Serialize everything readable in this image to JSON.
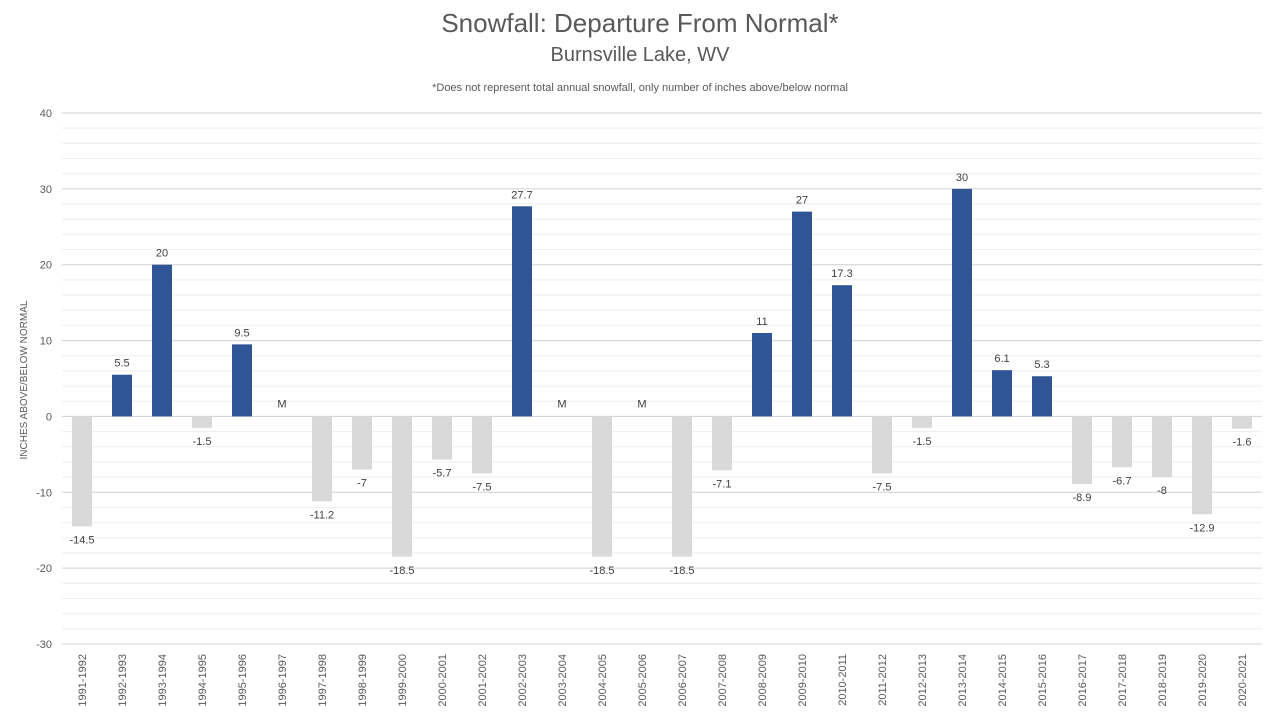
{
  "chart_data": {
    "type": "bar",
    "title": "Snowfall: Departure From Normal*",
    "subtitle": "Burnsville Lake, WV",
    "note": "*Does not represent  total annual snowfall, only number of inches above/below normal",
    "ylabel": "INCHES ABOVE/BELOW NORMAL",
    "xlabel": "",
    "ylim": [
      -30,
      40
    ],
    "yticks": [
      -30,
      -20,
      -10,
      0,
      10,
      20,
      30,
      40
    ],
    "grid": true,
    "legend": "none",
    "colors": {
      "positive": "#2F5597",
      "negative": "#D9D9D9",
      "missing_text": "#404040"
    },
    "categories": [
      "1991-1992",
      "1992-1993",
      "1993-1994",
      "1994-1995",
      "1995-1996",
      "1996-1997",
      "1997-1998",
      "1998-1999",
      "1999-2000",
      "2000-2001",
      "2001-2002",
      "2002-2003",
      "2003-2004",
      "2004-2005",
      "2005-2006",
      "2006-2007",
      "2007-2008",
      "2008-2009",
      "2009-2010",
      "2010-2011",
      "2011-2012",
      "2012-2013",
      "2013-2014",
      "2014-2015",
      "2015-2016",
      "2016-2017",
      "2017-2018",
      "2018-2019",
      "2019-2020",
      "2020-2021"
    ],
    "values": [
      -14.5,
      5.5,
      20,
      -1.5,
      9.5,
      null,
      -11.2,
      -7,
      -18.5,
      -5.7,
      -7.5,
      27.7,
      null,
      -18.5,
      null,
      -18.5,
      -7.1,
      11,
      27,
      17.3,
      -7.5,
      -1.5,
      30,
      6.1,
      5.3,
      -8.9,
      -6.7,
      -8,
      -12.9,
      -1.6
    ],
    "data_labels": [
      "-14.5",
      "5.5",
      "20",
      "-1.5",
      "9.5",
      "M",
      "-11.2",
      "-7",
      "-18.5",
      "-5.7",
      "-7.5",
      "27.7",
      "M",
      "-18.5",
      "M",
      "-18.5",
      "-7.1",
      "11",
      "27",
      "17.3",
      "-7.5",
      "-1.5",
      "30",
      "6.1",
      "5.3",
      "-8.9",
      "-6.7",
      "-8",
      "-12.9",
      "-1.6"
    ]
  }
}
